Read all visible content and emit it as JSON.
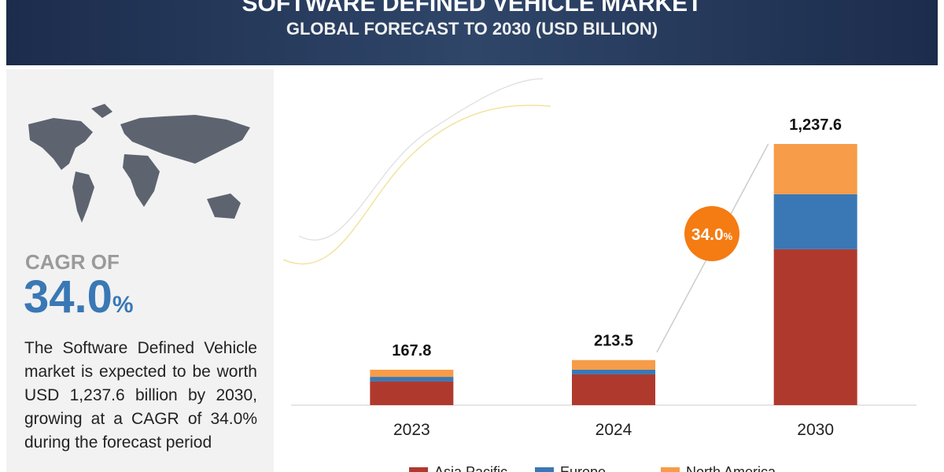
{
  "header": {
    "title": "SOFTWARE DEFINED VEHICLE MARKET",
    "subtitle": "GLOBAL FORECAST TO 2030 (USD BILLION)"
  },
  "side": {
    "cagr_heading": "CAGR OF",
    "cagr": "34.0",
    "cagr_unit": "%",
    "text": "The Software Defined Vehicle market is expected to be worth USD 1,237.6 billion by 2030, growing at a CAGR of 34.0% during the forecast period"
  },
  "chart_data": {
    "type": "bar",
    "stacked": true,
    "categories": [
      "2023",
      "2024",
      "2030"
    ],
    "series": [
      {
        "name": "Asia Pacific",
        "color": "#b0392e",
        "values": [
          112,
          145.5,
          738.5
        ]
      },
      {
        "name": "Europe",
        "color": "#3a78b5",
        "values": [
          22,
          22.4,
          261
        ]
      },
      {
        "name": "North America",
        "color": "#f79c48",
        "values": [
          33.8,
          45.6,
          238.1
        ]
      }
    ],
    "totals": [
      167.8,
      213.5,
      1237.6
    ],
    "totals_labels": [
      "167.8",
      "213.5",
      "1,237.6"
    ],
    "cagr_badge": "34.0",
    "cagr_badge_unit": "%"
  }
}
